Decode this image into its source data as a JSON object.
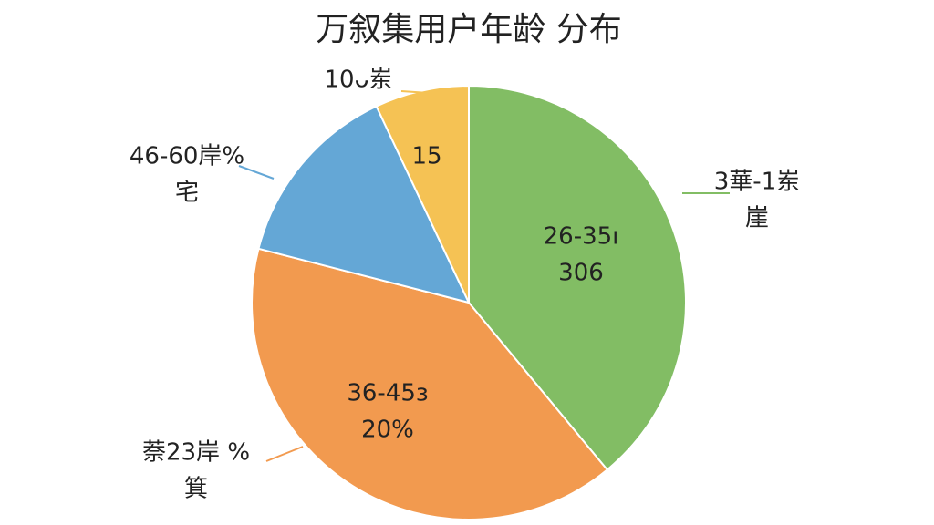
{
  "chart_data": {
    "type": "pie",
    "title": "万叙集用户年龄 分布",
    "values": [
      39,
      40,
      14,
      7
    ],
    "colors": [
      "#82bd64",
      "#f29a4f",
      "#64a7d6",
      "#f5c254"
    ],
    "inner_labels": [
      [
        "26-35ı",
        "306"
      ],
      [
        "36-45з",
        "20%"
      ],
      [],
      [
        "15"
      ]
    ],
    "outer_labels": [
      [
        "3華-1岽",
        "崖"
      ],
      [
        "萘23岸 %",
        "箕"
      ],
      [
        "46-60岸%",
        "宅"
      ],
      [
        "10ᴗ岽"
      ]
    ]
  }
}
